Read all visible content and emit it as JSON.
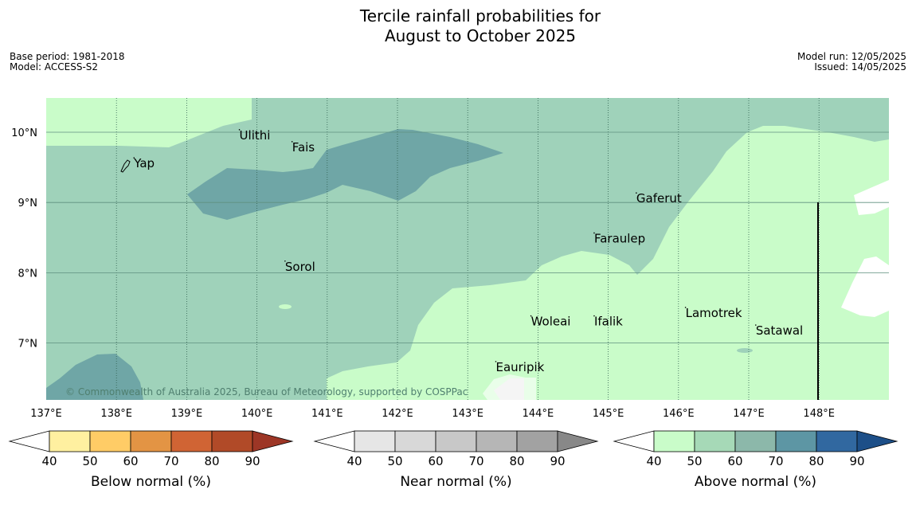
{
  "title": {
    "line1": "Tercile rainfall probabilities for",
    "line2": "August to October 2025"
  },
  "info_left": {
    "base_period": "Base period: 1981-2018",
    "model": "Model: ACCESS-S2"
  },
  "info_right": {
    "model_run": "Model run: 12/05/2025",
    "issued": "Issued: 14/05/2025"
  },
  "map": {
    "lon_labels": [
      "137°E",
      "138°E",
      "139°E",
      "140°E",
      "141°E",
      "142°E",
      "143°E",
      "144°E",
      "145°E",
      "146°E",
      "147°E",
      "148°E"
    ],
    "lat_labels": [
      "10°N",
      "9°N",
      "8°N",
      "7°N"
    ],
    "copyright": "© Commonwealth of Australia 2025, Bureau of Meteorology, supported by COSPPac",
    "places": [
      {
        "name": "Yap",
        "lon": 138.25,
        "lat": 9.5
      },
      {
        "name": "Ulithi",
        "lon": 139.75,
        "lat": 9.9
      },
      {
        "name": "Fais",
        "lon": 140.5,
        "lat": 9.73
      },
      {
        "name": "Gaferut",
        "lon": 145.4,
        "lat": 9.0
      },
      {
        "name": "Faraulep",
        "lon": 144.8,
        "lat": 8.43
      },
      {
        "name": "Sorol",
        "lon": 140.4,
        "lat": 8.03
      },
      {
        "name": "Lamotrek",
        "lon": 146.1,
        "lat": 7.37
      },
      {
        "name": "Woleai",
        "lon": 143.9,
        "lat": 7.25
      },
      {
        "name": "Ifalik",
        "lon": 144.8,
        "lat": 7.25
      },
      {
        "name": "Satawal",
        "lon": 147.1,
        "lat": 7.12
      },
      {
        "name": "Eauripik",
        "lon": 143.4,
        "lat": 6.6
      }
    ],
    "colors": {
      "above_40_50": "#c9fcc9",
      "above_50_60": "#9fd2ba",
      "above_60_70": "#6fa6a6",
      "near_40_50": "#e6e6e6"
    }
  },
  "colorbars": [
    {
      "label": "Below normal (%)",
      "ticks": [
        "40",
        "50",
        "60",
        "70",
        "80",
        "90"
      ],
      "colors": [
        "#ffffff",
        "#fff0a0",
        "#ffcc66",
        "#e39444",
        "#d06434",
        "#b14a28",
        "#9d3626"
      ]
    },
    {
      "label": "Near normal (%)",
      "ticks": [
        "40",
        "50",
        "60",
        "70",
        "80",
        "90"
      ],
      "colors": [
        "#ffffff",
        "#e6e6e6",
        "#d8d8d8",
        "#c8c8c8",
        "#b6b6b6",
        "#a2a2a2",
        "#888888"
      ]
    },
    {
      "label": "Above normal (%)",
      "ticks": [
        "40",
        "50",
        "60",
        "70",
        "80",
        "90"
      ],
      "colors": [
        "#ffffff",
        "#c9fcc9",
        "#a6d9b7",
        "#8cb8aa",
        "#5d96a4",
        "#3168a0",
        "#1d4f88"
      ]
    }
  ]
}
